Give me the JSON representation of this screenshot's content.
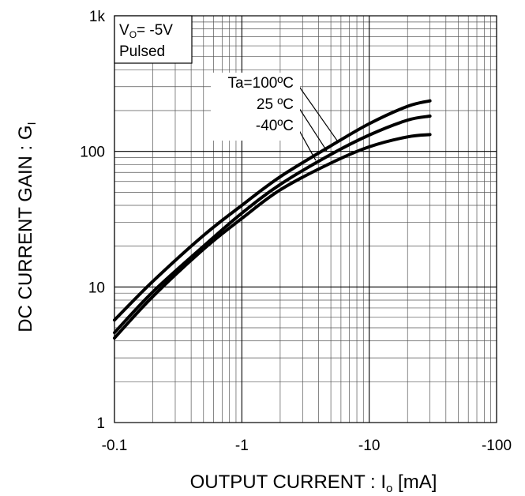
{
  "chart_data": {
    "type": "line",
    "xscale": "log",
    "yscale": "log",
    "xlim": [
      0.1,
      100
    ],
    "ylim": [
      1,
      1000
    ],
    "x_ticks": [
      {
        "v": 0.1,
        "label": "-0.1"
      },
      {
        "v": 1,
        "label": "-1"
      },
      {
        "v": 10,
        "label": "-10"
      },
      {
        "v": 100,
        "label": "-100"
      }
    ],
    "y_ticks": [
      {
        "v": 1,
        "label": "1"
      },
      {
        "v": 10,
        "label": "10"
      },
      {
        "v": 100,
        "label": "100"
      },
      {
        "v": 1000,
        "label": "1k"
      }
    ],
    "xlabel": "OUTPUT CURRENT : I",
    "xlabel_sub": "o",
    "xlabel_unit": " [mA]",
    "ylabel": "DC CURRENT GAIN : G",
    "ylabel_sub": "I",
    "condition_box": {
      "line1_main": "V",
      "line1_sub": "O",
      "line1_rest": "= -5V",
      "line2": "Pulsed"
    },
    "series": [
      {
        "name": "Ta=100ºC",
        "points": [
          [
            0.1,
            5.7
          ],
          [
            0.2,
            11
          ],
          [
            0.5,
            24
          ],
          [
            1,
            40
          ],
          [
            2,
            65
          ],
          [
            5,
            110
          ],
          [
            10,
            160
          ],
          [
            20,
            215
          ],
          [
            30,
            236
          ]
        ]
      },
      {
        "name": "25 ºC",
        "points": [
          [
            0.1,
            4.6
          ],
          [
            0.2,
            9.2
          ],
          [
            0.5,
            20
          ],
          [
            1,
            35
          ],
          [
            2,
            57
          ],
          [
            5,
            95
          ],
          [
            10,
            132
          ],
          [
            20,
            170
          ],
          [
            30,
            182
          ]
        ]
      },
      {
        "name": "-40ºC",
        "points": [
          [
            0.1,
            4.2
          ],
          [
            0.2,
            8.5
          ],
          [
            0.5,
            19
          ],
          [
            1,
            32
          ],
          [
            2,
            52
          ],
          [
            5,
            82
          ],
          [
            10,
            108
          ],
          [
            20,
            128
          ],
          [
            30,
            133
          ]
        ]
      }
    ],
    "grid": true,
    "legend": "inline labels with leader lines, upper middle"
  }
}
